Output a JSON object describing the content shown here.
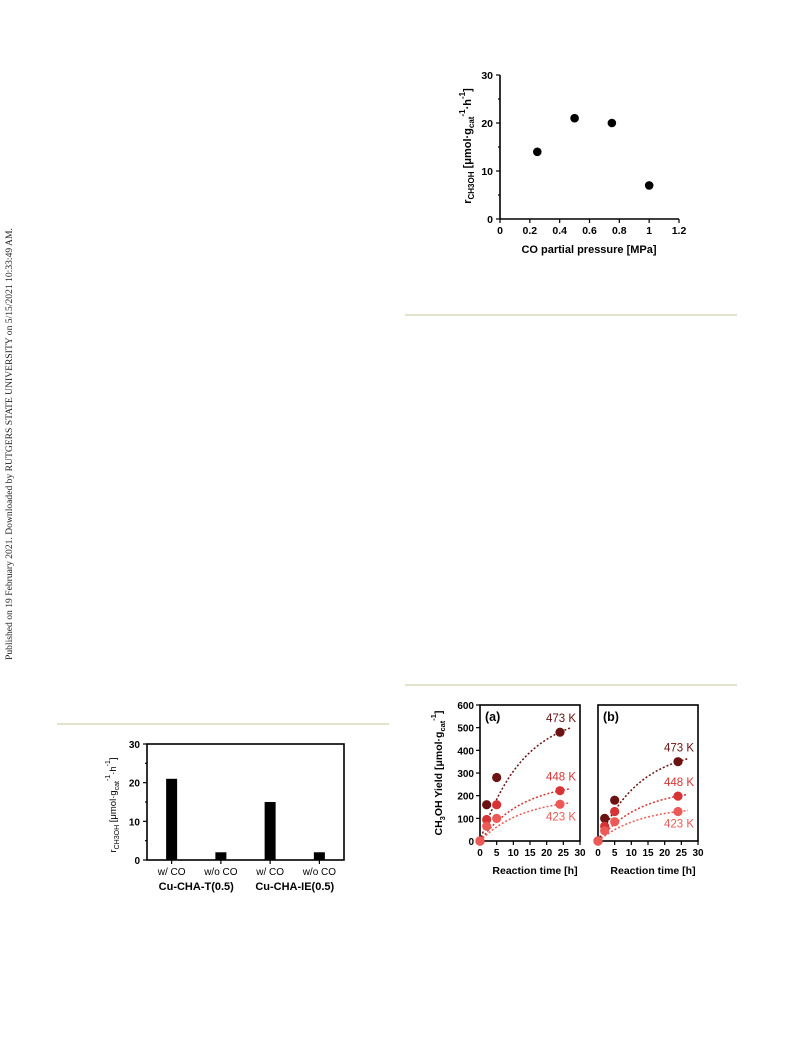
{
  "margin_note": "Published on 19 February 2021. Downloaded by RUTGERS STATE UNIVERSITY on 5/15/2021 10:33:49 AM.",
  "chart_data": [
    {
      "type": "scatter",
      "xlabel": "CO partial pressure [MPa]",
      "ylabel_parts": {
        "main": "r",
        "sub": "CH3OH",
        "unit_open": " [μmol·g",
        "unit_sub": "cat",
        "exp1": "-1",
        "mid": "·h",
        "exp2": "-1",
        "close": "]"
      },
      "xlim": [
        0,
        1.2
      ],
      "ylim": [
        0,
        30
      ],
      "x_ticks": [
        "0",
        "0.2",
        "0.4",
        "0.6",
        "0.8",
        "1",
        "1.2"
      ],
      "y_ticks": [
        "0",
        "10",
        "20",
        "30"
      ],
      "points": [
        {
          "x": 0.25,
          "y": 14
        },
        {
          "x": 0.5,
          "y": 21
        },
        {
          "x": 0.75,
          "y": 20
        },
        {
          "x": 1.0,
          "y": 7
        }
      ],
      "color": "#000000"
    },
    {
      "type": "bar",
      "categories": [
        "w/ CO",
        "w/o CO",
        "w/ CO",
        "w/o CO"
      ],
      "values": [
        21,
        2,
        15,
        2
      ],
      "groups": [
        "Cu-CHA-T(0.5)",
        "Cu-CHA-IE(0.5)"
      ],
      "ylabel_parts": {
        "main": "r",
        "sub": "CH3OH",
        "unit_open": " [μmol·g",
        "unit_sub": "cat",
        "exp1": "-1",
        "mid": "·h",
        "exp2": "-1",
        "close": "]"
      },
      "ylim": [
        0,
        30
      ],
      "y_ticks": [
        "0",
        "10",
        "20",
        "30"
      ],
      "color": "#000000"
    },
    {
      "type": "scatter",
      "ylabel_parts": {
        "main": "CH",
        "sub": "3",
        "rest": "OH Yield [μmol·g",
        "unit_sub": "cat",
        "exp": "-1",
        "close": "]"
      },
      "ylim": [
        0,
        600
      ],
      "y_ticks": [
        "0",
        "100",
        "200",
        "300",
        "400",
        "500",
        "600"
      ],
      "x_ticks": [
        "0",
        "5",
        "10",
        "15",
        "20",
        "25",
        "30"
      ],
      "xlim": [
        0,
        30
      ],
      "panels": [
        {
          "label": "(a)",
          "xlabel": "Reaction time [h]",
          "series": [
            {
              "name": "473 K",
              "color": "#6b1212",
              "x": [
                0,
                2,
                5,
                24
              ],
              "y": [
                0,
                160,
                280,
                480
              ]
            },
            {
              "name": "448 K",
              "color": "#d63434",
              "x": [
                0,
                2,
                5,
                24
              ],
              "y": [
                0,
                95,
                160,
                222
              ]
            },
            {
              "name": "423 K",
              "color": "#ec5a57",
              "x": [
                0,
                2,
                5,
                24
              ],
              "y": [
                0,
                65,
                100,
                162
              ]
            }
          ]
        },
        {
          "label": "(b)",
          "xlabel": "Reaction time [h]",
          "series": [
            {
              "name": "473 K",
              "color": "#6b1212",
              "x": [
                0,
                2,
                5,
                24
              ],
              "y": [
                0,
                100,
                180,
                350
              ]
            },
            {
              "name": "448 K",
              "color": "#d63434",
              "x": [
                0,
                2,
                5,
                24
              ],
              "y": [
                0,
                65,
                130,
                198
              ]
            },
            {
              "name": "423 K",
              "color": "#ec5a57",
              "x": [
                0,
                2,
                5,
                24
              ],
              "y": [
                0,
                45,
                85,
                130
              ]
            }
          ]
        }
      ]
    }
  ]
}
